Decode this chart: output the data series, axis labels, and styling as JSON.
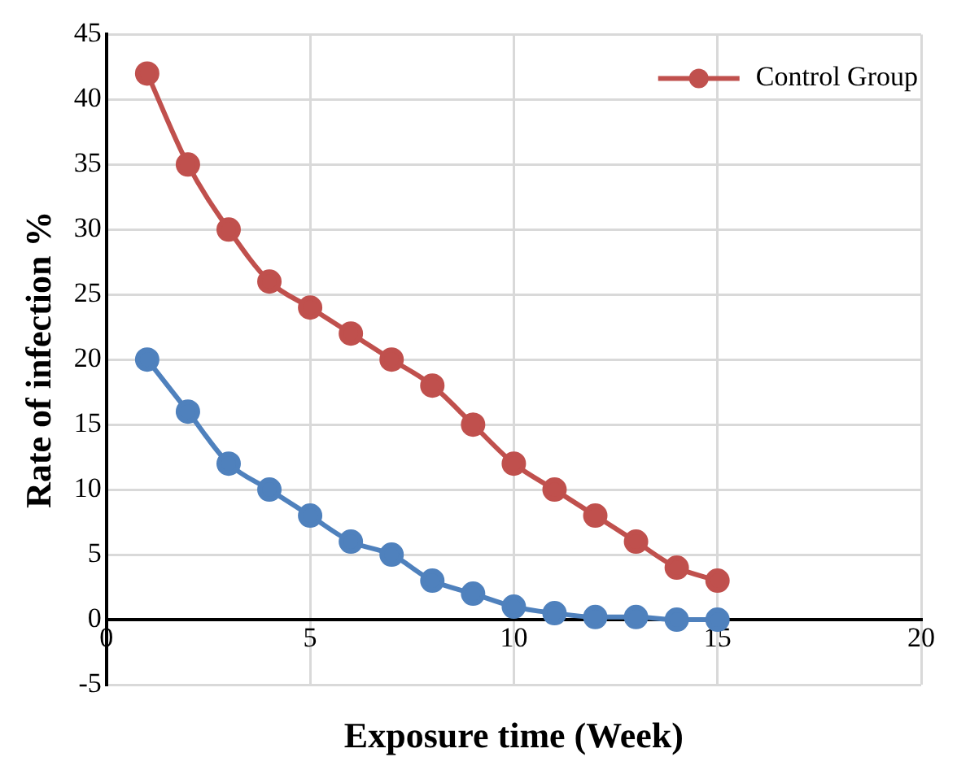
{
  "chart_data": {
    "type": "line",
    "xlabel": "Exposure time (Week)",
    "ylabel": "Rate of infection %",
    "x": [
      1,
      2,
      3,
      4,
      5,
      6,
      7,
      8,
      9,
      10,
      11,
      12,
      13,
      14,
      15
    ],
    "series": [
      {
        "name": "Control Group",
        "color": "#c0504d",
        "values": [
          42,
          35,
          30,
          26,
          24,
          22,
          20,
          18,
          15,
          12,
          10,
          8,
          6,
          4,
          3
        ]
      },
      {
        "color": "#4f81bd",
        "values": [
          20,
          16,
          12,
          10,
          8,
          6,
          5,
          3,
          2,
          1,
          0.5,
          0.2,
          0.2,
          0,
          0
        ]
      }
    ],
    "xlim": [
      0,
      20
    ],
    "xticks": [
      0,
      5,
      10,
      15,
      20
    ],
    "ylim": [
      -5,
      45
    ],
    "yticks": [
      -5,
      0,
      5,
      10,
      15,
      20,
      25,
      30,
      35,
      40,
      45
    ],
    "grid": true,
    "legend": "top right",
    "marker": "circle",
    "line_style": "solid"
  }
}
